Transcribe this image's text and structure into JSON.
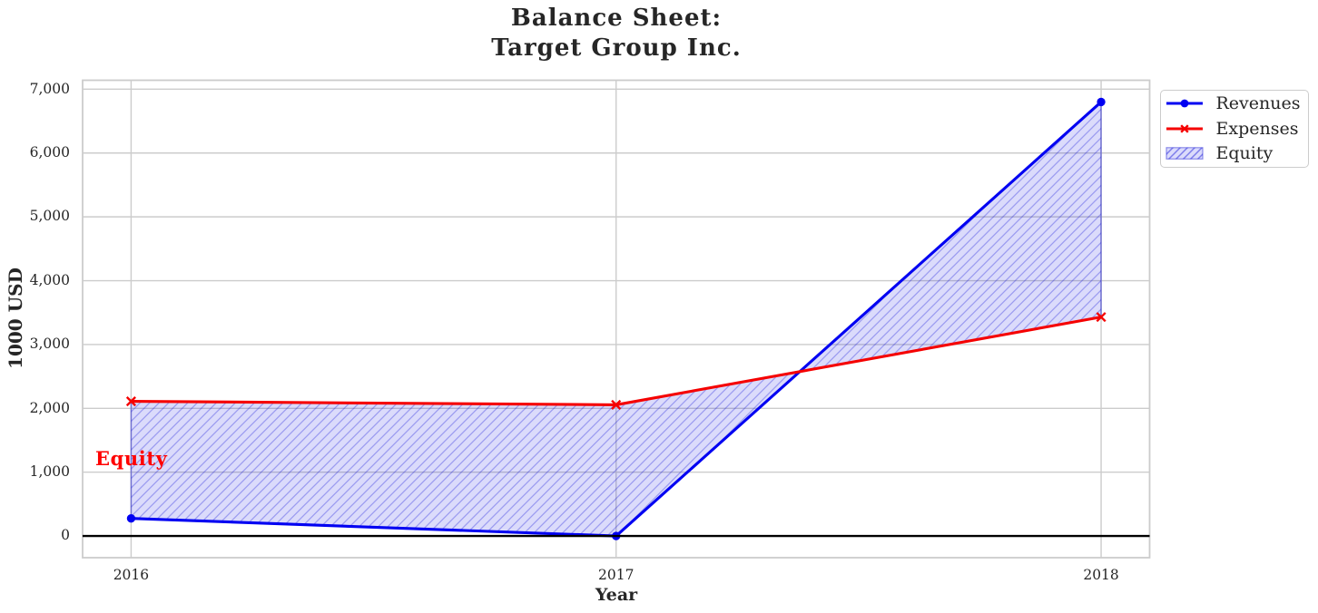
{
  "figure": {
    "title_line1": "Balance Sheet:",
    "title_line2": "Target Group Inc.",
    "background": "#ffffff"
  },
  "chart_data": {
    "type": "line",
    "title": "Balance Sheet:\nTarget Group Inc.",
    "xlabel": "Year",
    "ylabel": "1000 USD",
    "x": [
      2016,
      2017,
      2018
    ],
    "x_tick_labels": [
      "2016",
      "2017",
      "2018"
    ],
    "y_tick_values": [
      0,
      1000,
      2000,
      3000,
      4000,
      5000,
      6000,
      7000
    ],
    "y_tick_labels": [
      "0",
      "1,000",
      "2,000",
      "3,000",
      "4,000",
      "5,000",
      "6,000",
      "7,000"
    ],
    "xlim": [
      2015.9,
      2018.1
    ],
    "ylim": [
      -340,
      7140
    ],
    "grid": true,
    "legend_position": "upper right",
    "series": [
      {
        "name": "Revenues",
        "values": [
          275,
          0,
          6800
        ],
        "color": "#0000f2",
        "marker": "circle",
        "line_width": 3.1
      },
      {
        "name": "Expenses",
        "values": [
          2110,
          2055,
          3430
        ],
        "color": "#f50000",
        "marker": "x",
        "line_width": 3.1
      }
    ],
    "area": {
      "name": "Equity",
      "between": [
        "Revenues",
        "Expenses"
      ],
      "fill_color": "rgba(0,0,230,0.14)",
      "hatch": "//",
      "hatch_color": "rgba(10,10,215,0.30)",
      "edge_color": "rgba(20,20,210,0.45)"
    },
    "annotation": {
      "text": "Equity",
      "color": "#ff0000",
      "x": 2016,
      "y": 1100
    },
    "zero_line": {
      "y": 0,
      "color": "#000000"
    },
    "colors": {
      "grid": "#cccccc",
      "spine": "#cccccc",
      "text": "#262626",
      "legend_border": "#cccccc"
    }
  }
}
